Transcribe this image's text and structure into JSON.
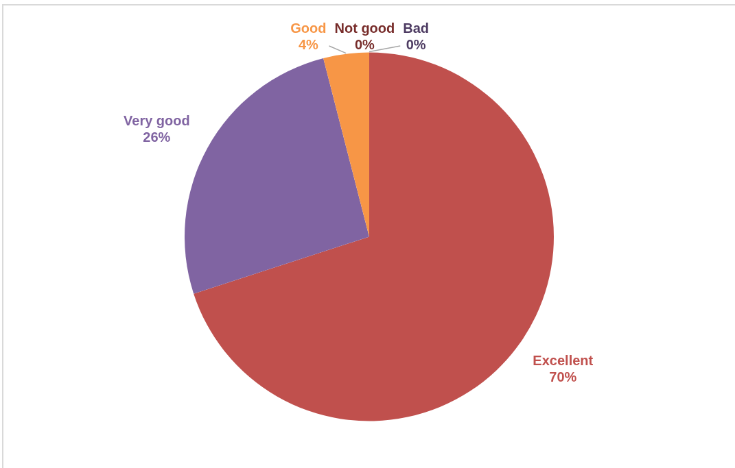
{
  "chart_data": {
    "type": "pie",
    "categories": [
      "Excellent",
      "Very good",
      "Good",
      "Not good",
      "Bad"
    ],
    "values": [
      70,
      26,
      4,
      0,
      0
    ],
    "colors": [
      "#c0504d",
      "#8064a2",
      "#f79646",
      "#772c2a",
      "#4d3b62"
    ],
    "value_labels": [
      "70%",
      "26%",
      "4%",
      "0%",
      "0%"
    ]
  }
}
